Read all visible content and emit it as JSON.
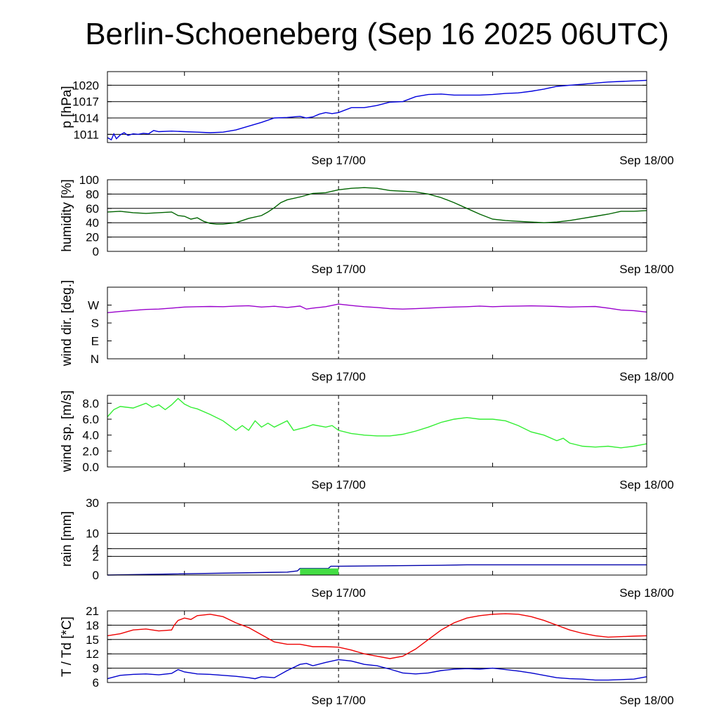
{
  "title": "Berlin-Schoeneberg (Sep 16 2025 06UTC)",
  "x_labels": [
    "Sep 17/00",
    "Sep 18/00"
  ],
  "colors": {
    "pressure": "#0000dd",
    "humidity": "#006400",
    "wind_dir": "#9900cc",
    "wind_speed": "#33ee33",
    "rain_cum": "#0000aa",
    "rain_bar": "#44dd44",
    "temperature": "#ee0000",
    "dewpoint": "#0000cc"
  },
  "chart_data": [
    {
      "type": "line",
      "ylabel": "p [hPa]",
      "x_unit": "hours since Sep 16 06UTC",
      "xlim": [
        0,
        42
      ],
      "ylim": [
        1009.5,
        1022.5
      ],
      "yticks": [
        1011,
        1014,
        1017,
        1020
      ],
      "ytick_labels": [
        "1011",
        "1014",
        "1017",
        "1020"
      ],
      "grid": true,
      "series": [
        {
          "color_key": "pressure",
          "x": [
            0,
            0.3,
            0.5,
            0.7,
            1,
            1.3,
            1.6,
            2,
            2.4,
            2.8,
            3.2,
            3.6,
            4,
            5,
            6,
            7,
            8,
            9,
            10,
            11,
            12,
            13,
            14,
            15,
            15.5,
            16,
            16.5,
            17,
            17.5,
            18,
            19,
            20,
            21,
            22,
            23,
            24,
            25,
            26,
            27,
            28,
            29,
            30,
            31,
            32,
            33,
            34,
            35,
            36,
            37,
            38,
            39,
            40,
            41,
            42
          ],
          "y": [
            1010.4,
            1010.0,
            1011.1,
            1010.2,
            1010.9,
            1011.3,
            1010.8,
            1011.1,
            1011.0,
            1011.2,
            1011.1,
            1011.7,
            1011.5,
            1011.6,
            1011.5,
            1011.4,
            1011.3,
            1011.4,
            1011.8,
            1012.5,
            1013.2,
            1014.0,
            1014.1,
            1014.3,
            1014.0,
            1014.2,
            1014.7,
            1015.0,
            1014.8,
            1015.0,
            1015.9,
            1015.9,
            1016.3,
            1016.9,
            1017.0,
            1017.9,
            1018.3,
            1018.4,
            1018.2,
            1018.2,
            1018.2,
            1018.3,
            1018.5,
            1018.6,
            1018.9,
            1019.3,
            1019.8,
            1020.0,
            1020.2,
            1020.4,
            1020.6,
            1020.7,
            1020.8,
            1020.9
          ]
        }
      ]
    },
    {
      "type": "line",
      "ylabel": "humidity [%]",
      "x_unit": "hours since Sep 16 06UTC",
      "xlim": [
        0,
        42
      ],
      "ylim": [
        0,
        100
      ],
      "yticks": [
        0,
        20,
        40,
        60,
        80,
        100
      ],
      "ytick_labels": [
        "0",
        "20",
        "40",
        "60",
        "80",
        "100"
      ],
      "grid": true,
      "series": [
        {
          "color_key": "humidity",
          "x": [
            0,
            1,
            2,
            3,
            4,
            5,
            5.5,
            6,
            6.5,
            7,
            7.5,
            8,
            8.5,
            9,
            10,
            11,
            12,
            12.5,
            13,
            13.5,
            14,
            15,
            16,
            17,
            18,
            19,
            20,
            21,
            22,
            23,
            24,
            25,
            26,
            27,
            28,
            29,
            30,
            31,
            32,
            33,
            34,
            35,
            36,
            37,
            38,
            39,
            40,
            41,
            42
          ],
          "y": [
            55,
            56,
            54,
            53,
            54,
            55,
            50,
            49,
            45,
            47,
            42,
            39,
            38,
            38,
            40,
            46,
            50,
            55,
            61,
            68,
            72,
            76,
            81,
            82,
            86,
            88,
            89,
            88,
            85,
            84,
            83,
            80,
            75,
            68,
            60,
            52,
            45,
            43,
            42,
            41,
            40,
            41,
            43,
            46,
            49,
            52,
            56,
            56,
            57
          ]
        }
      ]
    },
    {
      "type": "line",
      "ylabel": "wind dir. [deg.]",
      "x_unit": "hours since Sep 16 06UTC",
      "xlim": [
        0,
        42
      ],
      "ylim": [
        0,
        360
      ],
      "yticks": [
        0,
        90,
        180,
        270
      ],
      "ytick_labels": [
        "N",
        "E",
        "S",
        "W"
      ],
      "grid": false,
      "series": [
        {
          "color_key": "wind_dir",
          "x": [
            0,
            1,
            2,
            3,
            4,
            5,
            6,
            7,
            8,
            9,
            10,
            11,
            12,
            13,
            14,
            15,
            15.5,
            16,
            17,
            18,
            19,
            20,
            21,
            22,
            23,
            24,
            25,
            26,
            27,
            28,
            29,
            30,
            31,
            32,
            33,
            34,
            35,
            36,
            37,
            38,
            39,
            40,
            41,
            42
          ],
          "y": [
            232,
            238,
            243,
            248,
            250,
            255,
            260,
            262,
            263,
            262,
            265,
            267,
            260,
            264,
            258,
            265,
            250,
            255,
            262,
            275,
            268,
            262,
            258,
            252,
            250,
            252,
            255,
            258,
            260,
            262,
            265,
            262,
            264,
            265,
            266,
            265,
            263,
            260,
            262,
            263,
            255,
            245,
            242,
            235
          ]
        }
      ]
    },
    {
      "type": "line",
      "ylabel": "wind sp. [m/s]",
      "x_unit": "hours since Sep 16 06UTC",
      "xlim": [
        0,
        42
      ],
      "ylim": [
        0,
        9
      ],
      "yticks": [
        0,
        2,
        4,
        6,
        8
      ],
      "ytick_labels": [
        "0.0",
        "2.0",
        "4.0",
        "6.0",
        "8.0"
      ],
      "grid": false,
      "series": [
        {
          "color_key": "wind_speed",
          "x": [
            0,
            0.5,
            1,
            2,
            3,
            3.5,
            4,
            4.5,
            5,
            5.5,
            6,
            6.5,
            7,
            8,
            9,
            10,
            10.5,
            11,
            11.5,
            12,
            12.5,
            13,
            14,
            14.5,
            15,
            15.5,
            16,
            17,
            17.5,
            18,
            19,
            20,
            21,
            22,
            23,
            24,
            25,
            26,
            27,
            28,
            29,
            30,
            31,
            32,
            33,
            34,
            35,
            35.5,
            36,
            37,
            38,
            39,
            40,
            41,
            42
          ],
          "y": [
            6.3,
            7.2,
            7.6,
            7.4,
            8.0,
            7.5,
            7.8,
            7.2,
            7.8,
            8.6,
            7.9,
            7.5,
            7.3,
            6.6,
            5.8,
            4.6,
            5.2,
            4.6,
            5.8,
            5.0,
            5.5,
            5.0,
            5.8,
            4.6,
            4.8,
            5.0,
            5.3,
            5.0,
            5.2,
            4.6,
            4.2,
            4.0,
            3.9,
            3.9,
            4.1,
            4.5,
            5.0,
            5.6,
            6.0,
            6.2,
            6.0,
            6.0,
            5.8,
            5.2,
            4.4,
            4.0,
            3.3,
            3.6,
            3.0,
            2.6,
            2.5,
            2.6,
            2.4,
            2.6,
            2.9
          ]
        }
      ]
    },
    {
      "type": "line",
      "ylabel": "rain [mm]",
      "x_unit": "hours since Sep 16 06UTC",
      "xlim": [
        0,
        42
      ],
      "ylim": [
        0,
        30
      ],
      "scale": "sqrt",
      "yticks": [
        0,
        2,
        4,
        10,
        30
      ],
      "ytick_labels": [
        "0",
        "2",
        "4",
        "10",
        "30"
      ],
      "grid": true,
      "series": [
        {
          "color_key": "rain_cum",
          "x": [
            0,
            14,
            14.8,
            15.0,
            17.2,
            17.4,
            18,
            26,
            28,
            30,
            42
          ],
          "y": [
            0,
            0.05,
            0.1,
            0.25,
            0.25,
            0.45,
            0.45,
            0.55,
            0.6,
            0.6,
            0.6
          ]
        },
        {
          "color_key": "rain_bar",
          "type": "bar",
          "x": [
            16.5
          ],
          "width": 3.0,
          "y": [
            0.25
          ]
        }
      ]
    },
    {
      "type": "line",
      "ylabel": "T / Td [*C]",
      "x_unit": "hours since Sep 16 06UTC",
      "xlim": [
        0,
        42
      ],
      "ylim": [
        6,
        21
      ],
      "yticks": [
        6,
        9,
        12,
        15,
        18,
        21
      ],
      "ytick_labels": [
        "6",
        "9",
        "12",
        "15",
        "18",
        "21"
      ],
      "grid": true,
      "series": [
        {
          "color_key": "temperature",
          "x": [
            0,
            1,
            2,
            3,
            4,
            5,
            5.2,
            5.5,
            6,
            6.5,
            7,
            8,
            9,
            10,
            11,
            12,
            13,
            14,
            15,
            16,
            17,
            18,
            19,
            20,
            21,
            22,
            23,
            24,
            25,
            26,
            27,
            28,
            29,
            30,
            31,
            32,
            33,
            34,
            35,
            36,
            37,
            38,
            39,
            40,
            41,
            42
          ],
          "y": [
            15.8,
            16.2,
            17.0,
            17.2,
            16.8,
            17.0,
            18.0,
            19.0,
            19.5,
            19.2,
            20.0,
            20.3,
            19.8,
            18.5,
            17.5,
            16.0,
            14.5,
            14.0,
            14.0,
            13.5,
            13.5,
            13.4,
            12.8,
            12.0,
            11.5,
            11.0,
            11.5,
            13.0,
            15.0,
            17.0,
            18.5,
            19.5,
            20.0,
            20.3,
            20.4,
            20.3,
            19.8,
            19.0,
            18.0,
            17.0,
            16.3,
            15.8,
            15.5,
            15.6,
            15.7,
            15.8
          ]
        },
        {
          "color_key": "dewpoint",
          "x": [
            0,
            1,
            2,
            3,
            4,
            5,
            5.5,
            6,
            7,
            8,
            9,
            10,
            11,
            11.5,
            12,
            13,
            14,
            15,
            15.5,
            16,
            17,
            18,
            19,
            20,
            21,
            22,
            23,
            24,
            25,
            26,
            27,
            28,
            29,
            30,
            31,
            32,
            33,
            34,
            35,
            36,
            37,
            38,
            39,
            40,
            41,
            42
          ],
          "y": [
            6.8,
            7.5,
            7.7,
            7.8,
            7.6,
            7.9,
            8.7,
            8.2,
            7.8,
            7.7,
            7.5,
            7.3,
            7.0,
            6.8,
            7.2,
            7.0,
            8.5,
            9.8,
            10.0,
            9.5,
            10.2,
            10.8,
            10.5,
            9.8,
            9.5,
            8.8,
            8.0,
            7.8,
            8.0,
            8.5,
            8.8,
            8.9,
            8.8,
            9.0,
            8.7,
            8.4,
            8.0,
            7.5,
            7.0,
            6.8,
            6.7,
            6.5,
            6.5,
            6.6,
            6.7,
            7.2
          ]
        }
      ]
    }
  ]
}
